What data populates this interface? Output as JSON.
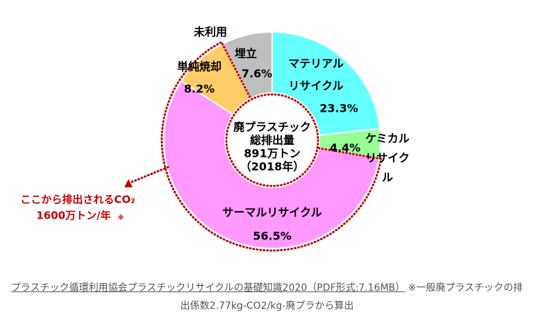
{
  "chart_data": {
    "type": "donut",
    "categories": [
      "マテリアルリサイクル",
      "ケミカルリサイクル",
      "サーマルリサイクル",
      "単純焼却",
      "埋立"
    ],
    "values": [
      23.3,
      4.4,
      56.5,
      8.2,
      7.6
    ],
    "value_labels": [
      "23.3%",
      "4.4%",
      "56.5%",
      "8.2%",
      "7.6%"
    ],
    "colors": [
      "#66ffff",
      "#99ff99",
      "#ff99ff",
      "#ffcc66",
      "#bfbfbf"
    ],
    "extra_label": "未利用",
    "center_text": [
      "廃プラスチック",
      "総排出量",
      "891万トン",
      "（2018年）"
    ],
    "annotation": [
      "ここから排出されるCO₂",
      "1600万トン/年"
    ],
    "annotation_mark": "※",
    "source_link": "プラスチック循環利用協会プラスチックリサイクルの基礎知識2020（PDF形式:7.16MB）",
    "source_note": "※一般廃プラスチックの排出係数2.77kg-CO2/kg-廃プラから算出"
  }
}
